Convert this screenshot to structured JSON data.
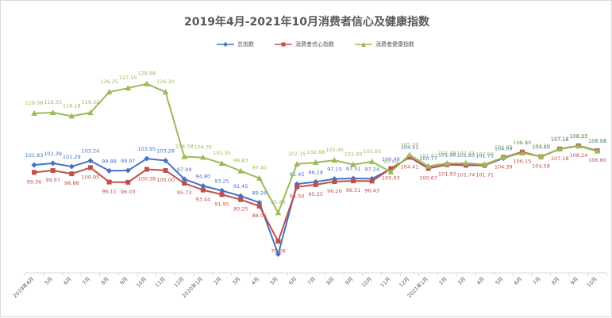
{
  "chart_data": {
    "type": "line",
    "title": "2019年4月-2021年10月消费者信心及健康指数",
    "categories": [
      "2019年4月",
      "5月",
      "6月",
      "7月",
      "8月",
      "9月",
      "10月",
      "11月",
      "12月",
      "2020年1月",
      "2月",
      "3月",
      "4月",
      "5月",
      "6月",
      "7月",
      "8月",
      "9月",
      "10月",
      "11月",
      "12月",
      "2021年1月",
      "2月",
      "3月",
      "4月",
      "5月",
      "6月",
      "7月",
      "8月",
      "9月",
      "10月"
    ],
    "series": [
      {
        "name": "总指数",
        "color": "#4472c4",
        "marker": "diamond",
        "values": [
          101.83,
          102.39,
          101.29,
          103.24,
          99.88,
          99.97,
          103.95,
          103.28,
          97.09,
          94.8,
          93.25,
          91.45,
          89.26,
          72.0,
          95.45,
          96.18,
          97.15,
          97.31,
          97.24,
          100.48,
          104.51,
          100.77,
          101.98,
          101.83,
          101.75,
          104.09,
          106.1,
          104.6,
          107.18,
          108.23,
          106.58
        ],
        "labels": [
          "101.83",
          "102.39",
          "101.29",
          "103.24",
          "99.88",
          "99.97",
          "103.95",
          "103.28",
          "97.09",
          "94.80",
          "93.25",
          "91.45",
          "89.26",
          "",
          "95.45",
          "96.18",
          "97.15",
          "97.31",
          "97.24",
          "100.48",
          "104.51",
          "100.77",
          "101.98",
          "101.83",
          "101.75",
          "104.09",
          "106.10",
          "104.60",
          "107.18",
          "108.23",
          "106.58"
        ]
      },
      {
        "name": "消费者信心指数",
        "color": "#c0504d",
        "marker": "square",
        "values": [
          99.36,
          99.97,
          98.88,
          100.95,
          96.11,
          96.03,
          100.38,
          100.0,
          95.73,
          93.44,
          91.95,
          90.25,
          88.05,
          76.28,
          94.5,
          95.25,
          96.26,
          96.51,
          96.43,
          100.63,
          104.41,
          100.67,
          101.93,
          101.74,
          101.71,
          104.39,
          106.15,
          104.58,
          107.18,
          108.24,
          106.6
        ],
        "labels": [
          "99.36",
          "99.97",
          "98.88",
          "100.95",
          "96.11",
          "96.03",
          "100.38",
          "100.00",
          "95.73",
          "93.44",
          "91.95",
          "90.25",
          "88.05",
          "76.28",
          "94.50",
          "95.25",
          "96.26",
          "96.51",
          "96.43",
          "100.63",
          "104.41",
          "100.67",
          "101.93",
          "101.74",
          "101.71",
          "104.39",
          "106.15",
          "104.58",
          "107.18",
          "108.24",
          "106.60"
        ]
      },
      {
        "name": "消费者健康指数",
        "color": "#9bbb59",
        "marker": "triangle",
        "values": [
          119.08,
          119.35,
          118.18,
          119.32,
          126.25,
          127.55,
          128.98,
          126.2,
          104.58,
          104.35,
          102.35,
          99.83,
          97.4,
          85.86,
          102.15,
          102.68,
          103.4,
          101.93,
          102.93,
          99.49,
          105.2,
          101.43,
          102.38,
          102.43,
          102.0,
          104.4,
          105.8,
          104.7,
          107.15,
          108.13,
          106.45
        ],
        "labels": [
          "119.08",
          "119.35",
          "118.18",
          "119.32",
          "126.25",
          "127.55",
          "128.98",
          "126.20",
          "104.58",
          "104.35",
          "102.35",
          "99.83",
          "97.40",
          "85.86",
          "102.15",
          "102.68",
          "103.40",
          "101.93",
          "102.93",
          "99.49",
          "105.20",
          "101.43",
          "102.38",
          "102.43",
          "102.00",
          "104.40",
          "105.80",
          "104.70",
          "107.15",
          "108.13",
          "106.45"
        ]
      }
    ],
    "xlabel": "",
    "ylabel": "",
    "ylim": [
      70,
      135
    ],
    "grid": false,
    "legend": "top-center"
  }
}
